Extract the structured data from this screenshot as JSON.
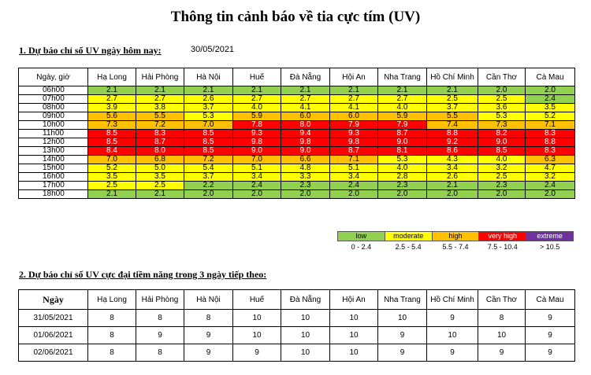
{
  "title": "Thông tin cảnh báo về tia cực tím (UV)",
  "section1": {
    "heading": "1. Dự báo chỉ số UV ngày hôm nay:",
    "date": "30/05/2021",
    "corner_header": "Ngày, giờ",
    "cities": [
      "Hạ Long",
      "Hải Phòng",
      "Hà Nội",
      "Huế",
      "Đà Nẵng",
      "Hội An",
      "Nha Trang",
      "Hồ Chí Minh",
      "Cần Thơ",
      "Cà Mau"
    ],
    "rows": [
      {
        "time": "06h00",
        "values": [
          "2.1",
          "2.1",
          "2.1",
          "2.1",
          "2.1",
          "2.1",
          "2.1",
          "2.1",
          "2.0",
          "2.0"
        ]
      },
      {
        "time": "07h00",
        "values": [
          "2.7",
          "2.7",
          "2.6",
          "2.7",
          "2.7",
          "2.7",
          "2.7",
          "2.5",
          "2.5",
          "2.4"
        ]
      },
      {
        "time": "08h00",
        "values": [
          "3.9",
          "3.8",
          "3.7",
          "4.0",
          "4.1",
          "4.1",
          "4.0",
          "3.7",
          "3.6",
          "3.5"
        ]
      },
      {
        "time": "09h00",
        "values": [
          "5.6",
          "5.5",
          "5.3",
          "5.9",
          "6.0",
          "6.0",
          "5.9",
          "5.5",
          "5.3",
          "5.2"
        ]
      },
      {
        "time": "10h00",
        "values": [
          "7.3",
          "7.2",
          "7.0",
          "7.8",
          "8.0",
          "7.9",
          "7.9",
          "7.4",
          "7.3",
          "7.1"
        ]
      },
      {
        "time": "11h00",
        "values": [
          "8.5",
          "8.3",
          "8.5",
          "9.3",
          "9.4",
          "9.3",
          "8.7",
          "8.8",
          "8.2",
          "8.3"
        ]
      },
      {
        "time": "12h00",
        "values": [
          "8.5",
          "8.7",
          "8.5",
          "9.8",
          "9.8",
          "9.8",
          "9.0",
          "9.2",
          "9.0",
          "8.8"
        ]
      },
      {
        "time": "13h00",
        "values": [
          "8.4",
          "8.0",
          "8.5",
          "9.0",
          "9.0",
          "8.7",
          "8.1",
          "8.6",
          "8.5",
          "8.3"
        ]
      },
      {
        "time": "14h00",
        "values": [
          "7.0",
          "6.8",
          "7.2",
          "7.0",
          "6.6",
          "7.1",
          "5.3",
          "4.3",
          "4.0",
          "6.3"
        ]
      },
      {
        "time": "15h00",
        "values": [
          "5.2",
          "5.0",
          "5.4",
          "5.1",
          "4.8",
          "5.1",
          "4.0",
          "3.4",
          "3.2",
          "4.7"
        ]
      },
      {
        "time": "16h00",
        "values": [
          "3.5",
          "3.5",
          "3.7",
          "3.4",
          "3.3",
          "3.4",
          "2.8",
          "2.6",
          "2.5",
          "3.2"
        ]
      },
      {
        "time": "17h00",
        "values": [
          "2.5",
          "2.5",
          "2.2",
          "2.4",
          "2.3",
          "2.4",
          "2.3",
          "2.1",
          "2.3",
          "2.4"
        ]
      },
      {
        "time": "18h00",
        "values": [
          "2.1",
          "2.1",
          "2.0",
          "2.0",
          "2.0",
          "2.0",
          "2.0",
          "2.0",
          "2.0",
          "2.0"
        ]
      }
    ]
  },
  "legend": {
    "items": [
      {
        "label": "low",
        "range": "0 - 2.4",
        "color": "#92d050",
        "text_color": "#000000"
      },
      {
        "label": "moderate",
        "range": "2.5 - 5.4",
        "color": "#ffff00",
        "text_color": "#000000"
      },
      {
        "label": "high",
        "range": "5.5 - 7.4",
        "color": "#ffc000",
        "text_color": "#000000"
      },
      {
        "label": "very high",
        "range": "7.5 - 10.4",
        "color": "#ff0000",
        "text_color": "#ffffff"
      },
      {
        "label": "extreme",
        "range": "> 10.5",
        "color": "#7030a0",
        "text_color": "#ffffff"
      }
    ]
  },
  "section2": {
    "heading": "2. Dự báo chỉ số UV cực đại tiềm năng trong 3 ngày tiếp theo:",
    "corner_header": "Ngày",
    "rows": [
      {
        "date": "31/05/2021",
        "values": [
          "8",
          "8",
          "8",
          "10",
          "10",
          "10",
          "10",
          "9",
          "8",
          "9"
        ]
      },
      {
        "date": "01/06/2021",
        "values": [
          "8",
          "9",
          "9",
          "10",
          "10",
          "10",
          "9",
          "10",
          "10",
          "9"
        ]
      },
      {
        "date": "02/06/2021",
        "values": [
          "8",
          "8",
          "9",
          "9",
          "10",
          "10",
          "9",
          "9",
          "9",
          "9"
        ]
      }
    ]
  }
}
